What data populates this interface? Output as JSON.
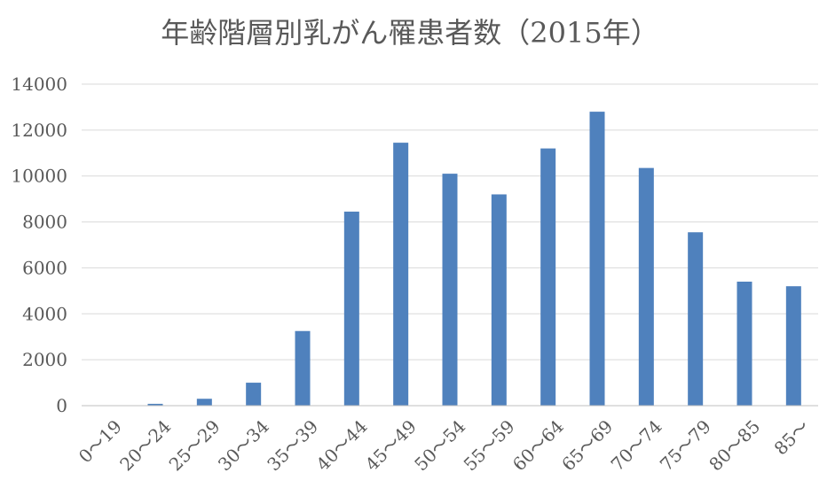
{
  "chart_data": {
    "type": "bar",
    "title": "年齢階層別乳がん罹患者数（2015年）",
    "xlabel": "",
    "ylabel": "",
    "categories": [
      "0～19",
      "20～24",
      "25～29",
      "30～34",
      "35～39",
      "40～44",
      "45～49",
      "50～54",
      "55～59",
      "60～64",
      "65～69",
      "70～74",
      "75～79",
      "80～85",
      "85～"
    ],
    "values": [
      10,
      80,
      300,
      1000,
      3250,
      8450,
      11450,
      10100,
      9200,
      11200,
      12800,
      10350,
      7550,
      5400,
      5200
    ],
    "ylim": [
      0,
      14000
    ],
    "yticks": [
      "0",
      "2000",
      "4000",
      "6000",
      "8000",
      "10000",
      "12000",
      "14000"
    ],
    "grid": true,
    "legend": "none",
    "bar_color": "#4f81bd"
  }
}
